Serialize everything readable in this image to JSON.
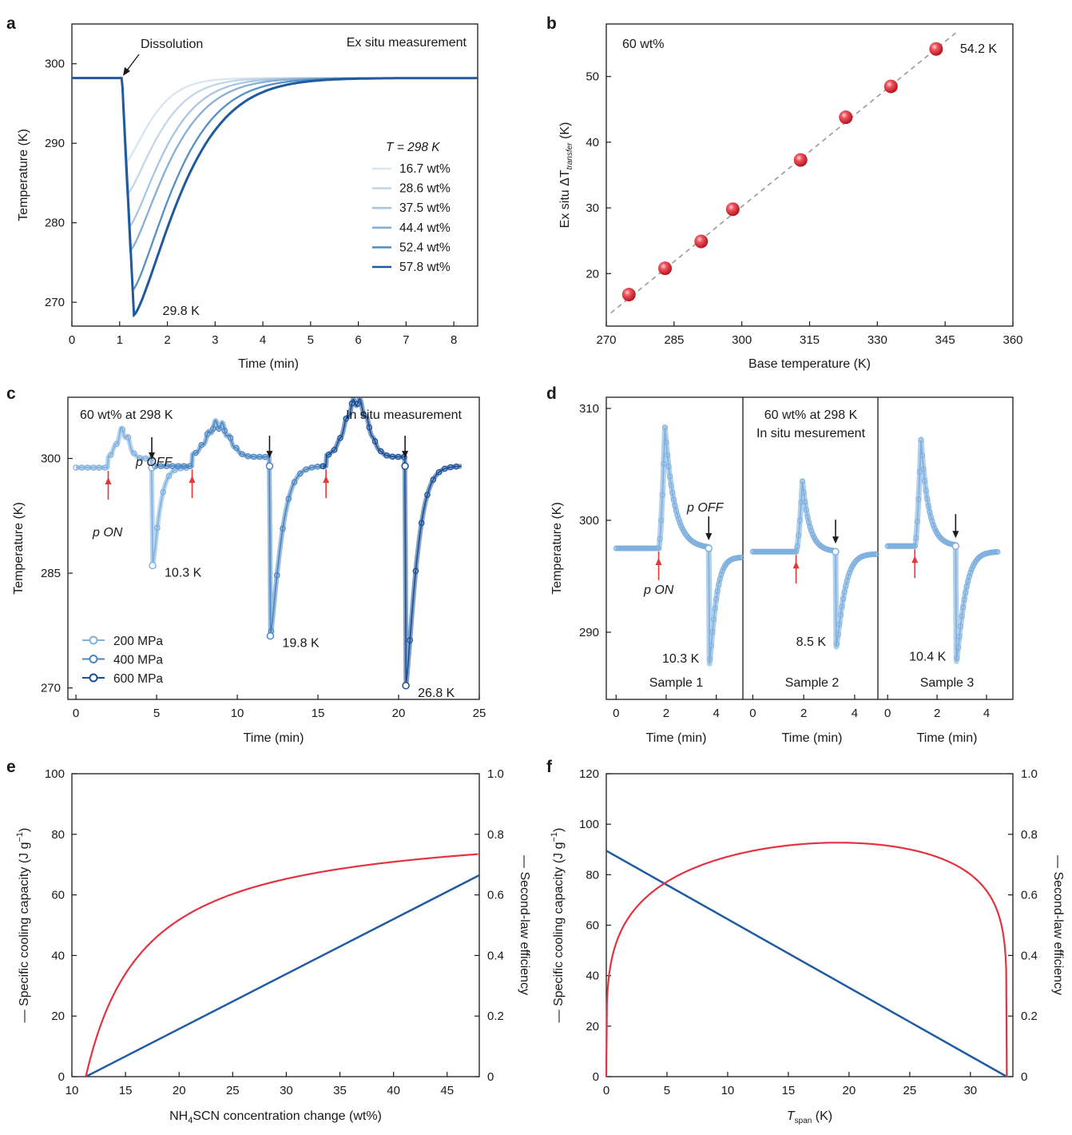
{
  "colors": {
    "shades6": [
      "#d9e5f1",
      "#c3d6ea",
      "#a9c6e1",
      "#86afd6",
      "#5590c4",
      "#1f5a9e"
    ],
    "light": "#7fb0de",
    "mid": "#4a86c2",
    "dark": "#1a4f96",
    "red": "#e2333f",
    "blue": "#1f5ba3",
    "arrow_red": "#e23838",
    "dashed": "#999999"
  },
  "chart_data": [
    {
      "id": "a",
      "type": "line",
      "letter": "a",
      "xlabel": "Time (min)",
      "ylabel": "Temperature (K)",
      "xlim": [
        0,
        8.5
      ],
      "ylim": [
        267,
        305
      ],
      "xticks": [
        0,
        1,
        2,
        3,
        4,
        5,
        6,
        7,
        8
      ],
      "yticks": [
        270,
        280,
        290,
        300
      ],
      "legend_title": "T = 298 K",
      "baseline": 298.2,
      "t_start": 1.05,
      "series": [
        {
          "name": "16.7 wt%",
          "min": 287.5,
          "t_min": 1.12,
          "tau": 0.7
        },
        {
          "name": "28.6 wt%",
          "min": 283.5,
          "t_min": 1.15,
          "tau": 0.85
        },
        {
          "name": "37.5 wt%",
          "min": 279.5,
          "t_min": 1.2,
          "tau": 0.95
        },
        {
          "name": "44.4 wt%",
          "min": 276.5,
          "t_min": 1.22,
          "tau": 1.05
        },
        {
          "name": "52.4 wt%",
          "min": 271.5,
          "t_min": 1.27,
          "tau": 1.15
        },
        {
          "name": "57.8 wt%",
          "min": 268.4,
          "t_min": 1.3,
          "tau": 1.25
        }
      ],
      "annotations": {
        "dissolution": "Dissolution",
        "mode": "Ex situ measurement",
        "min_label": "29.8 K"
      }
    },
    {
      "id": "b",
      "type": "scatter",
      "letter": "b",
      "xlabel": "Base temperature (K)",
      "ylabel": "Ex situ ΔT",
      "ylabel_sub": "transfer",
      "ylabel_unit": " (K)",
      "xlim": [
        270,
        360
      ],
      "ylim": [
        12,
        58
      ],
      "xticks": [
        270,
        285,
        300,
        315,
        330,
        345,
        360
      ],
      "yticks": [
        20,
        30,
        40,
        50
      ],
      "x": [
        275,
        283,
        291,
        298,
        313,
        323,
        333,
        343
      ],
      "y": [
        16.8,
        20.8,
        24.9,
        29.8,
        37.3,
        43.8,
        48.5,
        54.2
      ],
      "trend": {
        "x": [
          271,
          348
        ],
        "y": [
          14.0,
          57.0
        ]
      },
      "annotations": {
        "condition": "60 wt%",
        "last_label": "54.2 K"
      }
    },
    {
      "id": "c",
      "type": "line",
      "letter": "c",
      "xlabel": "Time (min)",
      "ylabel": "Temperature (K)",
      "xlim": [
        -0.5,
        25
      ],
      "ylim": [
        268.5,
        308
      ],
      "xticks": [
        0,
        5,
        10,
        15,
        20,
        25
      ],
      "yticks": [
        270,
        285,
        300
      ],
      "series": [
        {
          "name": "200 MPa",
          "start": 0,
          "on": 2.0,
          "off": 4.7,
          "end": 7.0,
          "base": 298.8,
          "peak_t": 2.9,
          "peak": 303.5,
          "min": 286.0,
          "drop_label": "10.3 K"
        },
        {
          "name": "400 MPa",
          "start": 4.9,
          "on": 7.2,
          "off": 12.0,
          "end": 15.5,
          "base": 299.0,
          "peak_t": 8.8,
          "peak": 304.5,
          "min": 276.8,
          "drop_label": "19.8 K"
        },
        {
          "name": "600 MPa",
          "start": 15.3,
          "on": 15.5,
          "off": 20.4,
          "end": 23.9,
          "base": 299.0,
          "peak_t": 17.4,
          "peak": 307.5,
          "min": 270.3,
          "drop_label": "26.8 K"
        }
      ],
      "annotations": {
        "condition": "60 wt% at 298 K",
        "mode": "In situ measurement",
        "p_on": "p ON",
        "p_off": "p OFF"
      }
    },
    {
      "id": "d",
      "type": "line",
      "letter": "d",
      "xlabel": "Time (min)",
      "ylabel": "Temperature (K)",
      "ylim": [
        284,
        311
      ],
      "yticks": [
        290,
        300,
        310
      ],
      "condition": "60 wt% at 298 K",
      "mode": "In situ mesurement",
      "p_on": "p ON",
      "p_off": "p OFF",
      "samples": [
        {
          "name": "Sample 1",
          "on": 1.7,
          "peak_t": 1.95,
          "peak": 308.3,
          "off": 3.7,
          "min": 287.2,
          "end": 5.0,
          "base": 297.5,
          "base2": 296.7,
          "drop_label": "10.3 K",
          "xlim": [
            -0.2,
            5.0
          ],
          "xticks": [
            0,
            2,
            4
          ]
        },
        {
          "name": "Sample 2",
          "on": 1.7,
          "peak_t": 1.95,
          "peak": 303.5,
          "off": 3.25,
          "min": 288.7,
          "end": 4.85,
          "base": 297.2,
          "base2": 297.0,
          "drop_label": "8.5 K",
          "xlim": [
            -0.2,
            4.85
          ],
          "xticks": [
            0,
            2,
            4
          ]
        },
        {
          "name": "Sample 3",
          "on": 1.1,
          "peak_t": 1.35,
          "peak": 307.2,
          "off": 2.75,
          "min": 287.4,
          "end": 4.45,
          "base": 297.7,
          "base2": 297.2,
          "drop_label": "10.4 K",
          "xlim": [
            -0.2,
            5.0
          ],
          "xticks": [
            0,
            2,
            4
          ]
        }
      ]
    },
    {
      "id": "e",
      "type": "line",
      "letter": "e",
      "xlabel": "NH4SCN concentration change (wt%)",
      "xlabel_pre": "NH",
      "xlabel_sub": "4",
      "xlabel_post": "SCN concentration change (wt%)",
      "ylabel": "Specific cooling capacity (J g⁻¹)",
      "ylabel_left": "— Specific cooling capacity (J g",
      "ylabel_left_sup": "−1",
      "ylabel_left_end": ")",
      "ylabel_right": "— Second-law efficiency",
      "xlim": [
        10,
        48
      ],
      "ylim_left": [
        0,
        100
      ],
      "ylim_right": [
        0,
        1
      ],
      "xticks": [
        10,
        15,
        20,
        25,
        30,
        35,
        40,
        45
      ],
      "yticks_left": [
        0,
        20,
        40,
        60,
        80,
        100
      ],
      "yticks_right": [
        "0",
        "0.2",
        "0.4",
        "0.6",
        "0.8",
        "1.0"
      ],
      "series": [
        {
          "name": "Specific cooling capacity",
          "axis": "left",
          "x": [
            11.3,
            48
          ],
          "y": [
            0,
            66.5
          ]
        },
        {
          "name": "Second-law efficiency",
          "axis": "right",
          "x0": 11.3,
          "asymptote": 0.845,
          "k": 5.5
        }
      ]
    },
    {
      "id": "f",
      "type": "line",
      "letter": "f",
      "xlabel": "T span (K)",
      "xlabel_main": "T",
      "xlabel_sub": "span",
      "xlabel_unit": " (K)",
      "ylabel": "Specific cooling capacity (J g⁻¹)",
      "ylabel_left": "— Specific cooling capacity (J g",
      "ylabel_left_sup": "−1",
      "ylabel_left_end": ")",
      "ylabel_right": "— Second-law efficiency",
      "xlim": [
        0,
        33.5
      ],
      "ylim_left": [
        0,
        120
      ],
      "ylim_right": [
        0,
        1
      ],
      "xticks": [
        0,
        5,
        10,
        15,
        20,
        25,
        30
      ],
      "yticks_left": [
        0,
        20,
        40,
        60,
        80,
        100,
        120
      ],
      "yticks_right": [
        "0",
        "0.2",
        "0.4",
        "0.6",
        "0.8",
        "1.0"
      ],
      "series": [
        {
          "name": "Specific cooling capacity",
          "axis": "left",
          "x": [
            0,
            33
          ],
          "y": [
            89.5,
            0
          ]
        },
        {
          "name": "Second-law efficiency",
          "axis": "right",
          "span": 33,
          "max": 0.82
        }
      ]
    }
  ]
}
